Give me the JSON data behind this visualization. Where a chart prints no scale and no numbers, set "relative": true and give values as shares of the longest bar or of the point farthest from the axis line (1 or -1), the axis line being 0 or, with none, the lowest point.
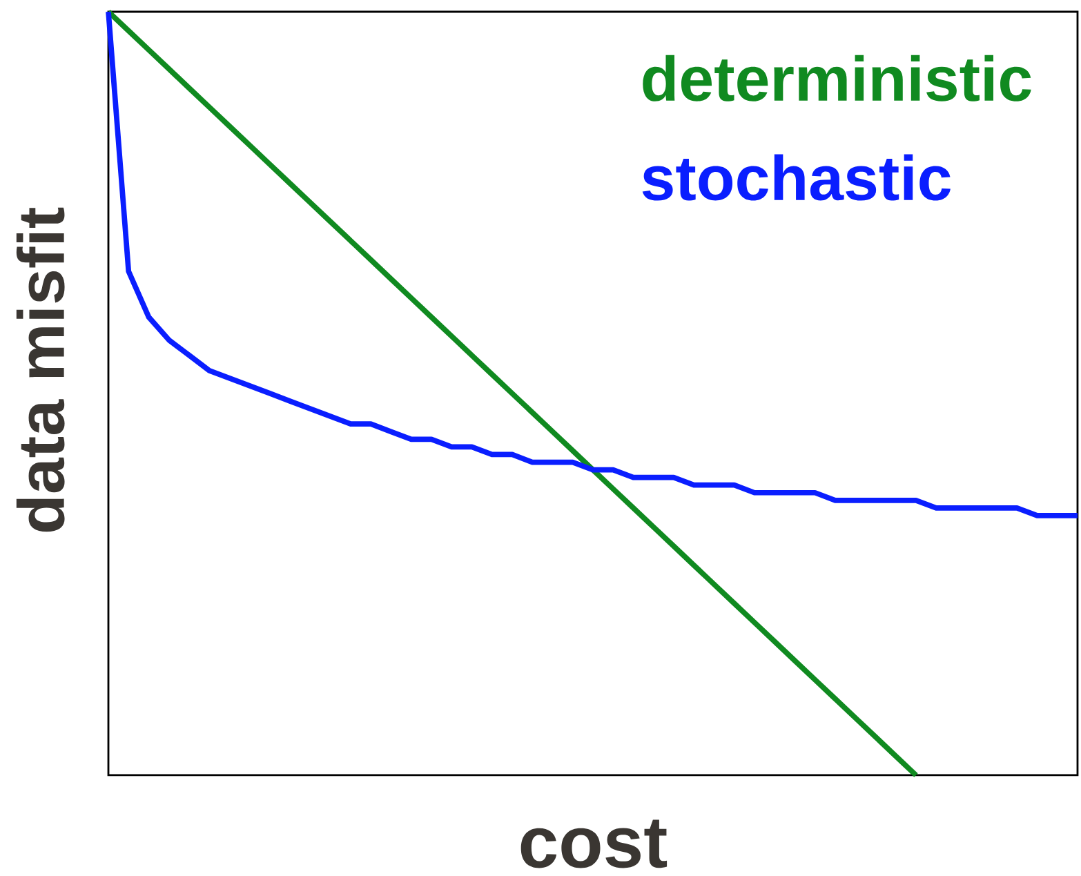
{
  "chart_data": {
    "type": "line",
    "relative": true,
    "xlabel": "cost",
    "ylabel": "data misfit",
    "legend": "top right",
    "categories": [
      null,
      null,
      null,
      null,
      null,
      null,
      null,
      null,
      null,
      null,
      null,
      null,
      null,
      null,
      null,
      null,
      null,
      null,
      null,
      null,
      null,
      null,
      null,
      null,
      null,
      null,
      null,
      null,
      null,
      null,
      null,
      null,
      null,
      null,
      null,
      null,
      null,
      null,
      null,
      null,
      null,
      null,
      null,
      null,
      null,
      null,
      null,
      null,
      null
    ],
    "series": [
      {
        "name": "deterministic",
        "color": "#108a20",
        "values": [
          1,
          0.975,
          0.95,
          0.925,
          0.9,
          0.875,
          0.85,
          0.825,
          0.8,
          0.775,
          0.75,
          0.725,
          0.7,
          0.675,
          0.65,
          0.625,
          0.6,
          0.575,
          0.55,
          0.525,
          0.5,
          0.475,
          0.45,
          0.425,
          0.4,
          0.375,
          0.35,
          0.325,
          0.3,
          0.275,
          0.25,
          0.225,
          0.2,
          0.175,
          0.15,
          0.125,
          0.1,
          0.075,
          0.05,
          0.025,
          0,
          null,
          null,
          null,
          null,
          null,
          null,
          null,
          null
        ]
      },
      {
        "name": "stochastic",
        "color": "#0a1eff",
        "values": [
          1,
          0.66,
          0.6,
          0.57,
          0.55,
          0.53,
          0.52,
          0.51,
          0.5,
          0.49,
          0.48,
          0.47,
          0.46,
          0.46,
          0.45,
          0.44,
          0.44,
          0.43,
          0.43,
          0.42,
          0.42,
          0.41,
          0.41,
          0.41,
          0.4,
          0.4,
          0.39,
          0.39,
          0.39,
          0.38,
          0.38,
          0.38,
          0.37,
          0.37,
          0.37,
          0.37,
          0.36,
          0.36,
          0.36,
          0.36,
          0.36,
          0.35,
          0.35,
          0.35,
          0.35,
          0.35,
          0.34,
          0.34,
          0.34
        ]
      }
    ]
  }
}
